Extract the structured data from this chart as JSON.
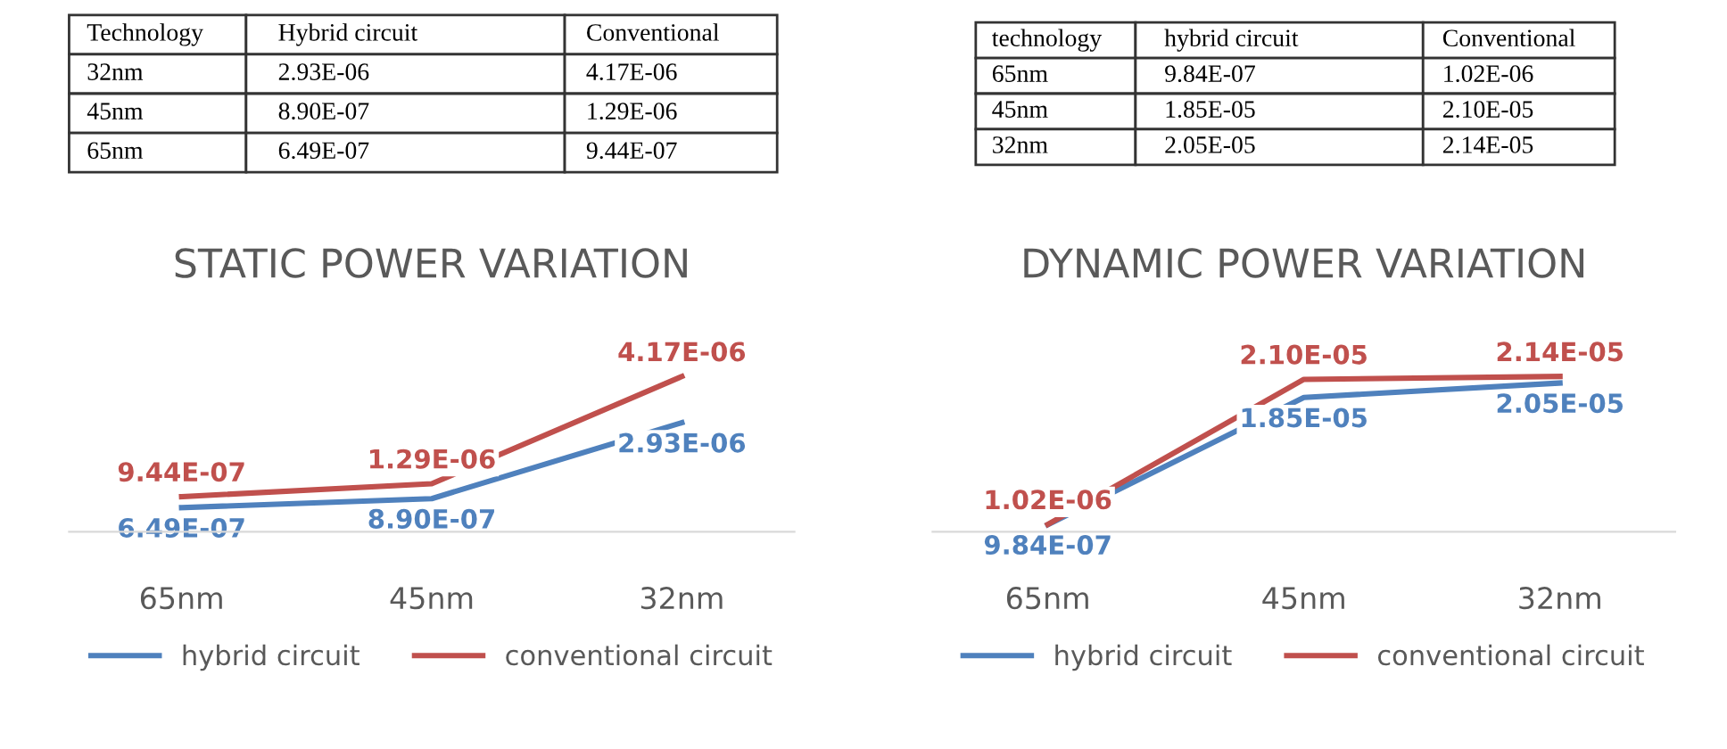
{
  "chart_data": [
    {
      "type": "other",
      "categories": [
        "Technology",
        "Hybrid circuit",
        "Conventional"
      ],
      "y_categories": [
        "32nm",
        "45nm",
        "65nm"
      ],
      "cell_labels": [
        [
          "2.93E-06",
          "4.17E-06"
        ],
        [
          "8.90E-07",
          "1.29E-06"
        ],
        [
          "6.49E-07",
          "9.44E-07"
        ]
      ]
    },
    {
      "type": "other",
      "categories": [
        "technology",
        "hybrid circuit",
        "Conventional"
      ],
      "y_categories": [
        "65nm",
        "45nm",
        "32nm"
      ],
      "cell_labels": [
        [
          "9.84E-07",
          "1.02E-06"
        ],
        [
          "1.85E-05",
          "2.10E-05"
        ],
        [
          "2.05E-05",
          "2.14E-05"
        ]
      ]
    },
    {
      "type": "line",
      "title": "STATIC POWER VARIATION",
      "categories": [
        "65nm",
        "45nm",
        "32nm"
      ],
      "legend": "bottom",
      "line_style": "solid",
      "tick_labels": "x",
      "series": [
        {
          "name": "hybrid circuit",
          "color": "#4f81bd",
          "values": [
            6.49e-07,
            8.9e-07,
            2.93e-06
          ],
          "value_labels": [
            "6.49E-07",
            "8.90E-07",
            "2.93E-06"
          ]
        },
        {
          "name": "conventional circuit",
          "color": "#c0504d",
          "values": [
            9.44e-07,
            1.29e-06,
            4.17e-06
          ],
          "value_labels": [
            "9.44E-07",
            "1.29E-06",
            "4.17E-06"
          ]
        }
      ]
    },
    {
      "type": "line",
      "title": "DYNAMIC POWER VARIATION",
      "categories": [
        "65nm",
        "45nm",
        "32nm"
      ],
      "legend": "bottom",
      "line_style": "solid",
      "tick_labels": "x",
      "series": [
        {
          "name": "hybrid circuit",
          "color": "#4f81bd",
          "values": [
            9.84e-07,
            1.85e-05,
            2.05e-05
          ],
          "value_labels": [
            "9.84E-07",
            "1.85E-05",
            "2.05E-05"
          ]
        },
        {
          "name": "conventional circuit",
          "color": "#c0504d",
          "values": [
            1.02e-06,
            2.1e-05,
            2.14e-05
          ],
          "value_labels": [
            "1.02E-06",
            "2.10E-05",
            "2.14E-05"
          ]
        }
      ]
    }
  ]
}
